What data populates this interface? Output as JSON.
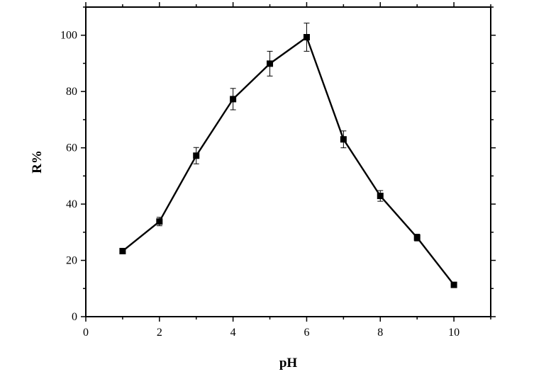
{
  "chart_data": {
    "type": "line",
    "title": "",
    "xlabel": "pH",
    "ylabel": "R%",
    "xlim": [
      0,
      11
    ],
    "ylim": [
      0,
      110
    ],
    "xticks": [
      0,
      2,
      4,
      6,
      8,
      10
    ],
    "yticks": [
      0,
      20,
      40,
      60,
      80,
      100
    ],
    "grid": false,
    "legend": "none",
    "series": [
      {
        "x": [
          1,
          2,
          3,
          4,
          5,
          6,
          7,
          8,
          9,
          10
        ],
        "y": [
          23.3,
          33.8,
          57.2,
          77.3,
          89.9,
          99.3,
          63.0,
          42.9,
          28.1,
          11.3
        ],
        "err": [
          0.5,
          1.5,
          2.9,
          3.8,
          4.4,
          5.0,
          3.0,
          1.9,
          1.2,
          0.3
        ],
        "marker": "square",
        "color": "#000000"
      }
    ]
  }
}
